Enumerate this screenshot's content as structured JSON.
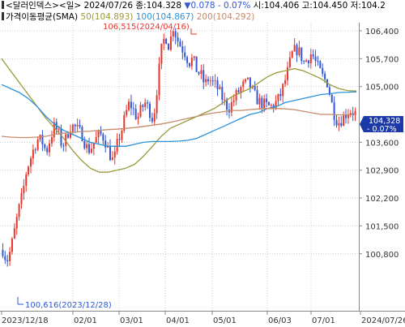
{
  "header": {
    "symbol": "<달러인덱스>",
    "period": "<일>",
    "date": "2024/07/26",
    "close_label": "종:",
    "close": "104.328",
    "change_arrow": "▼",
    "change": "0.078",
    "change_pct": "- 0.07%",
    "open_label": "시:",
    "open": "104.406",
    "high_label": "고:",
    "high": "104.450",
    "low_label": "저:",
    "low": "104.2",
    "indicator_name": "가격이동평균(SMA)",
    "sma50_label": "50(104.893)",
    "sma100_label": "100(104.867)",
    "sma200_label": "200(104.292)"
  },
  "colors": {
    "up": "#e8352c",
    "down": "#2f57d6",
    "sma50": "#9a9a3a",
    "sma100": "#2a92d8",
    "sma200": "#c48b6b",
    "last_box": "#1b3aa8",
    "grid": "#c9cdd6"
  },
  "chart_data": {
    "type": "candlestick",
    "y_ticks": [
      "106,400",
      "105,700",
      "105,000",
      "104,328",
      "103,600",
      "102,900",
      "102,200",
      "101,500",
      "100,800"
    ],
    "x_ticks": [
      "2023/12/18",
      "02/01",
      "03/01",
      "04/01",
      "05/01",
      "06/03",
      "07/01",
      "2024/07/26"
    ],
    "ylim": [
      100.45,
      106.75
    ],
    "last_price": "104,328",
    "last_change": "- 0.07%",
    "annotations": {
      "high": {
        "text": "106,515(2024/04/16)",
        "value": 106.515
      },
      "low": {
        "text": "100,616(2023/12/28)",
        "value": 100.616
      }
    },
    "series": [
      {
        "name": "SMA 50",
        "values": [
          105.7,
          105.4,
          105.1,
          104.8,
          104.5,
          104.2,
          103.95,
          103.7,
          103.4,
          103.15,
          102.95,
          102.85,
          102.85,
          102.9,
          102.95,
          103.05,
          103.25,
          103.5,
          103.75,
          103.95,
          104.05,
          104.15,
          104.25,
          104.35,
          104.45,
          104.6,
          104.75,
          104.85,
          104.95,
          105.1,
          105.25,
          105.35,
          105.4,
          105.45,
          105.4,
          105.3,
          105.2,
          105.05,
          104.95,
          104.9,
          104.89
        ]
      },
      {
        "name": "SMA 100",
        "values": [
          105.05,
          104.95,
          104.85,
          104.7,
          104.5,
          104.25,
          104.05,
          103.9,
          103.8,
          103.7,
          103.6,
          103.55,
          103.5,
          103.5,
          103.5,
          103.55,
          103.6,
          103.62,
          103.62,
          103.62,
          103.63,
          103.65,
          103.7,
          103.8,
          103.9,
          104.0,
          104.1,
          104.2,
          104.3,
          104.35,
          104.45,
          104.5,
          104.6,
          104.65,
          104.7,
          104.75,
          104.8,
          104.82,
          104.85,
          104.86,
          104.867
        ]
      },
      {
        "name": "SMA 200",
        "values": [
          103.75,
          103.73,
          103.72,
          103.72,
          103.73,
          103.75,
          103.8,
          103.83,
          103.85,
          103.87,
          103.88,
          103.9,
          103.92,
          103.93,
          103.95,
          103.97,
          104.0,
          104.03,
          104.06,
          104.1,
          104.15,
          104.2,
          104.25,
          104.3,
          104.34,
          104.37,
          104.4,
          104.4,
          104.42,
          104.44,
          104.45,
          104.45,
          104.44,
          104.42,
          104.38,
          104.34,
          104.3,
          104.3,
          104.29,
          104.29,
          104.292
        ]
      }
    ],
    "ohlc_path": [
      100.9,
      100.616,
      100.9,
      101.4,
      101.9,
      102.3,
      102.9,
      103.2,
      103.5,
      103.7,
      103.6,
      103.35,
      103.7,
      104.0,
      103.85,
      103.5,
      103.7,
      104.0,
      104.0,
      103.9,
      103.8,
      103.5,
      103.4,
      103.6,
      103.75,
      103.8,
      103.6,
      103.3,
      103.1,
      103.6,
      103.9,
      104.3,
      104.6,
      104.4,
      104.2,
      104.45,
      104.6,
      104.4,
      104.15,
      105.0,
      105.9,
      106.3,
      106.0,
      106.515,
      106.2,
      106.0,
      105.85,
      105.6,
      105.7,
      105.4,
      105.3,
      105.05,
      105.2,
      105.1,
      105.0,
      104.8,
      104.6,
      104.45,
      104.6,
      104.8,
      104.95,
      105.05,
      105.1,
      104.9,
      104.7,
      104.6,
      104.55,
      104.5,
      104.5,
      104.6,
      104.75,
      105.05,
      105.4,
      105.8,
      105.95,
      105.85,
      105.6,
      105.7,
      105.85,
      105.6,
      105.4,
      105.2,
      105.1,
      104.6,
      104.2,
      104.1,
      104.25,
      104.35,
      104.4,
      104.328
    ]
  }
}
